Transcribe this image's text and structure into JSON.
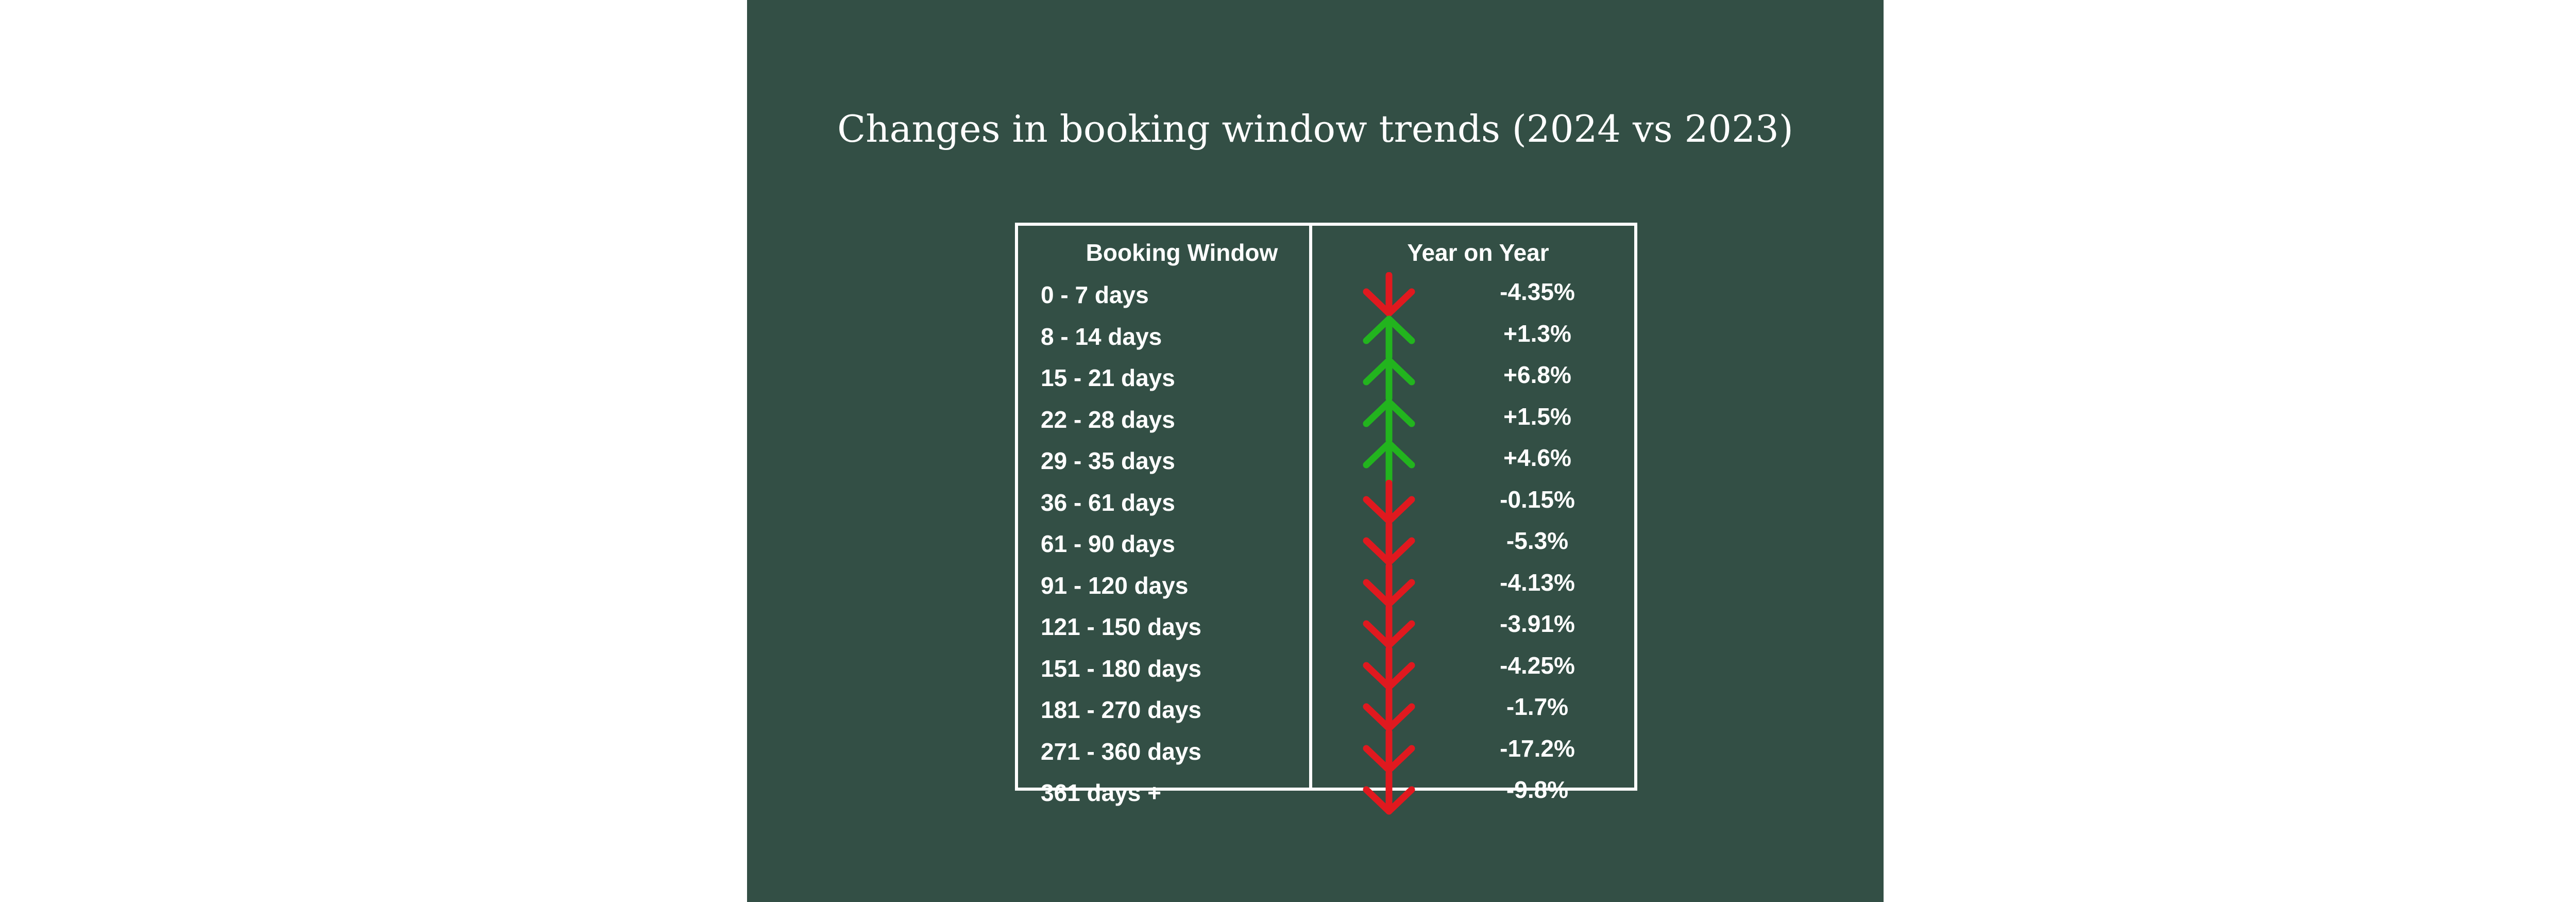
{
  "title": "Changes in booking window trends (2024 vs 2023)",
  "colors": {
    "background": "#334f45",
    "text": "#ffffff",
    "up": "#22b41e",
    "down": "#e0191f"
  },
  "chart_data": {
    "type": "table",
    "title": "Changes in booking window trends (2024 vs 2023)",
    "columns": [
      "Booking Window",
      "Year on Year"
    ],
    "rows": [
      {
        "window": "0 - 7 days",
        "direction": "down",
        "change": "-4.35%",
        "value": -4.35
      },
      {
        "window": "8 - 14 days",
        "direction": "up",
        "change": "+1.3%",
        "value": 1.3
      },
      {
        "window": "15 - 21 days",
        "direction": "up",
        "change": "+6.8%",
        "value": 6.8
      },
      {
        "window": "22 - 28 days",
        "direction": "up",
        "change": "+1.5%",
        "value": 1.5
      },
      {
        "window": "29 - 35 days",
        "direction": "up",
        "change": "+4.6%",
        "value": 4.6
      },
      {
        "window": "36 - 61 days",
        "direction": "down",
        "change": "-0.15%",
        "value": -0.15
      },
      {
        "window": "61 - 90 days",
        "direction": "down",
        "change": "-5.3%",
        "value": -5.3
      },
      {
        "window": "91 - 120 days",
        "direction": "down",
        "change": "-4.13%",
        "value": -4.13
      },
      {
        "window": "121 - 150 days",
        "direction": "down",
        "change": "-3.91%",
        "value": -3.91
      },
      {
        "window": "151 - 180 days",
        "direction": "down",
        "change": "-4.25%",
        "value": -4.25
      },
      {
        "window": "181 - 270 days",
        "direction": "down",
        "change": "-1.7%",
        "value": -1.7
      },
      {
        "window": "271 - 360 days",
        "direction": "down",
        "change": "-17.2%",
        "value": -17.2
      },
      {
        "window": "361 days +",
        "direction": "down",
        "change": "-9.8%",
        "value": -9.8
      }
    ]
  }
}
